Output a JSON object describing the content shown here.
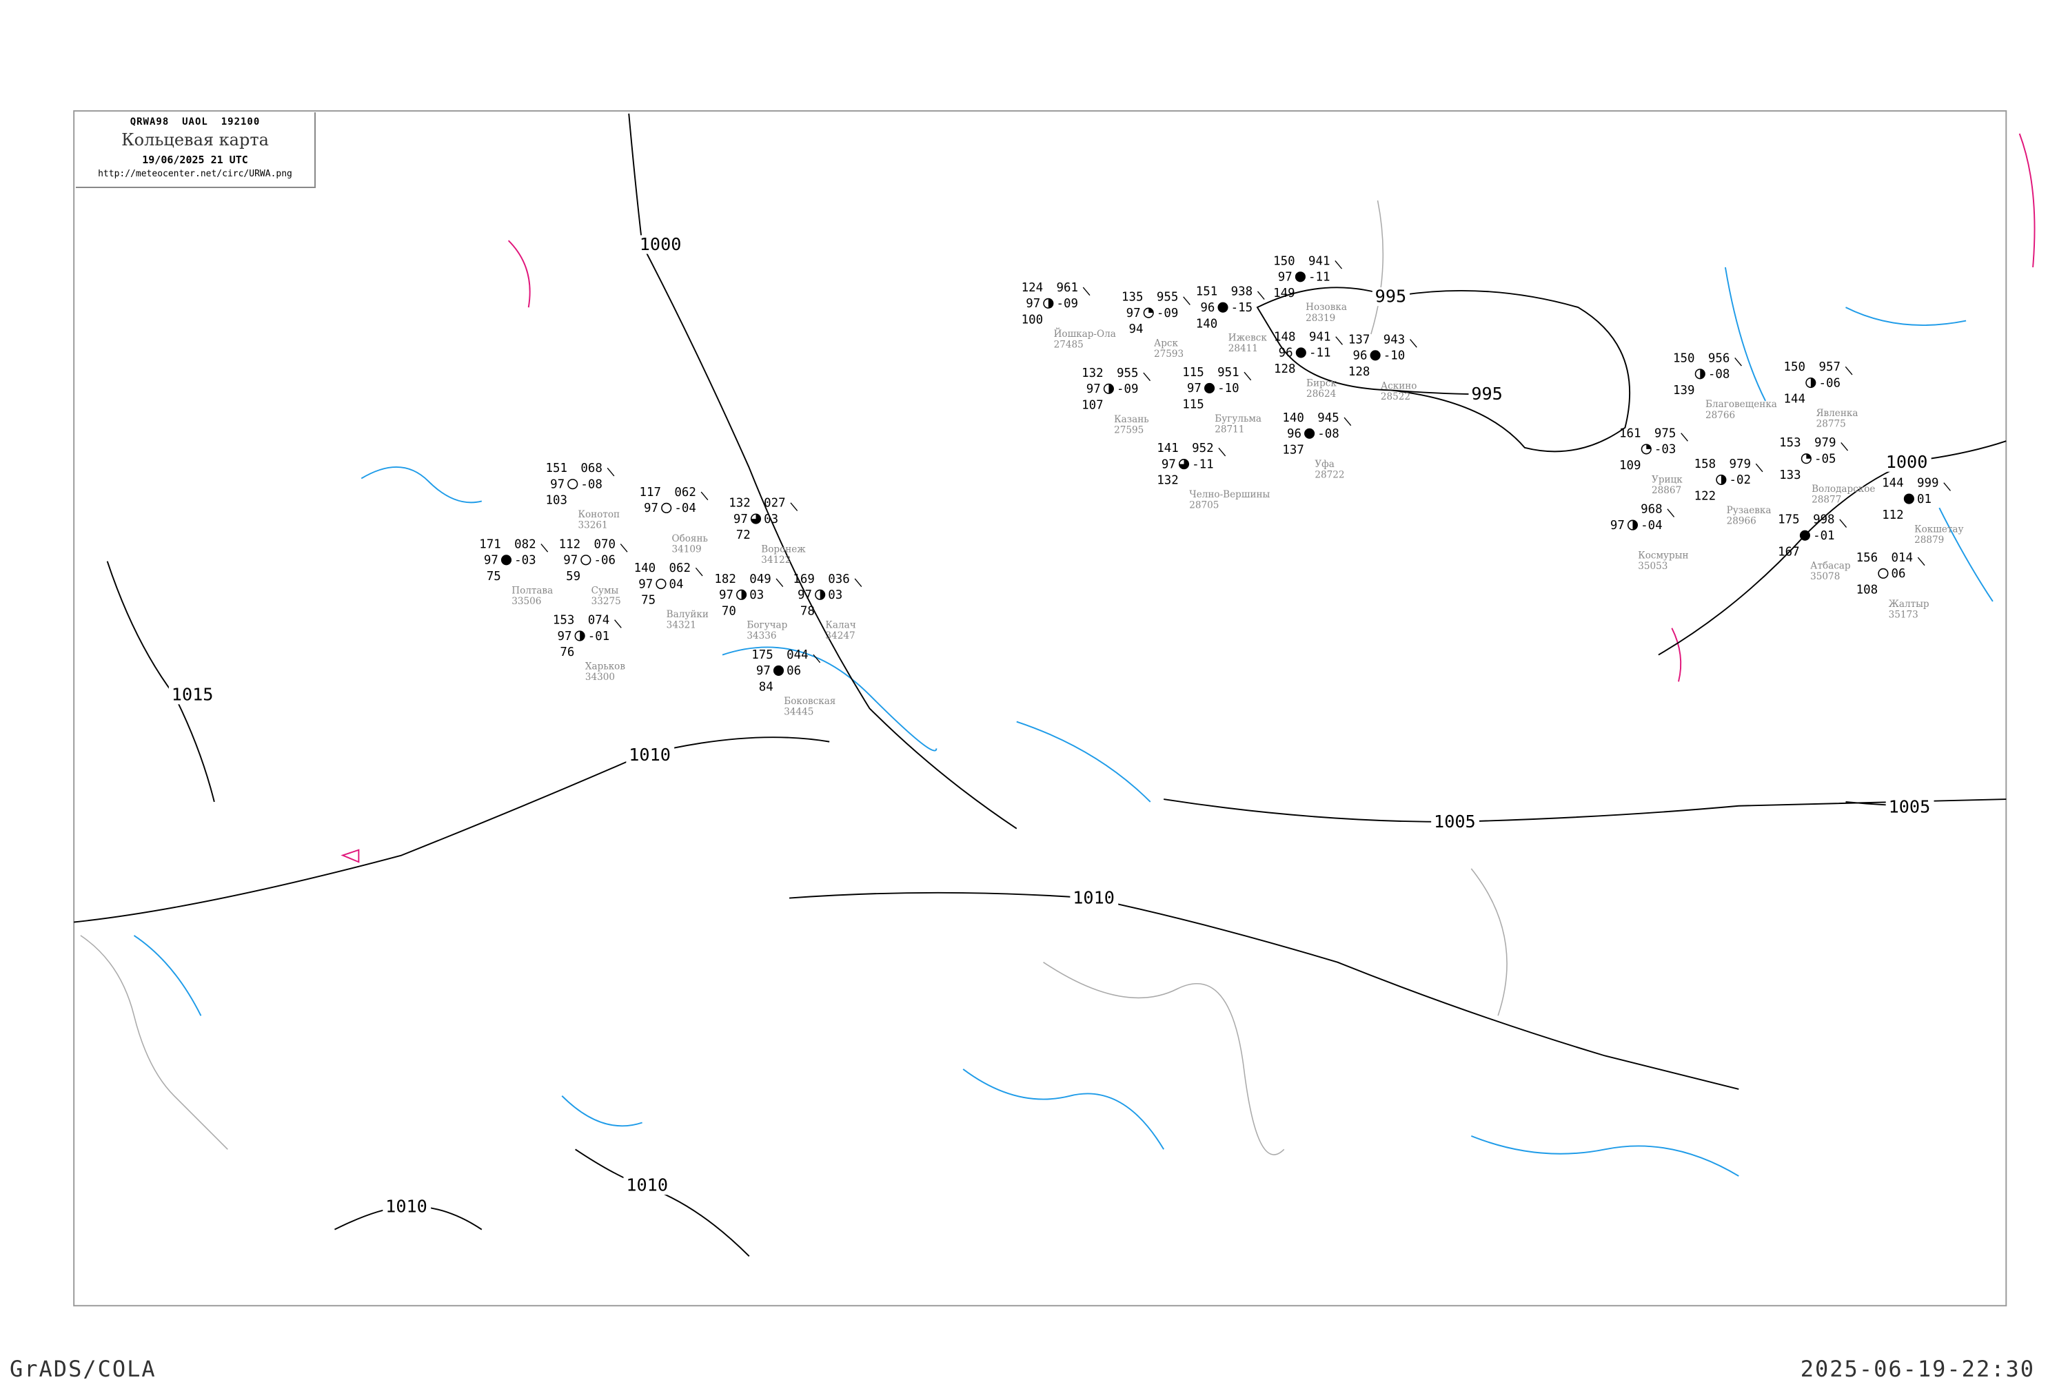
{
  "header": {
    "code": "QRWA98  UAOL  192100",
    "title": "Кольцевая карта",
    "date": "19/06/2025 21 UTC",
    "url": "http://meteocenter.net/circ/URWA.png"
  },
  "footer": {
    "left": "GrADS/COLA",
    "right": "2025-06-19-22:30"
  },
  "colors": {
    "isobar": "#000000",
    "river": "#1e9be8",
    "coast": "#aaaaaa",
    "front": "#e0157a",
    "station_name": "#888888"
  },
  "isobars": [
    {
      "label": "1000"
    },
    {
      "label": "995"
    },
    {
      "label": "995"
    },
    {
      "label": "1000"
    },
    {
      "label": "1005"
    },
    {
      "label": "1005"
    },
    {
      "label": "1010"
    },
    {
      "label": "1010"
    },
    {
      "label": "1015"
    },
    {
      "label": "1010"
    },
    {
      "label": "1010"
    }
  ],
  "stations": [
    {
      "name": "Ижевск",
      "id": "28411",
      "tl": "151",
      "ml": "96",
      "bl": "140",
      "tr": "938",
      "mr": "-15",
      "cover": "full"
    },
    {
      "name": "Нозовка",
      "id": "28319",
      "tl": "150",
      "ml": "97",
      "bl": "149",
      "tr": "941",
      "mr": "-11",
      "cover": "full"
    },
    {
      "name": "Казань",
      "id": "27595",
      "tl": "132",
      "ml": "97",
      "bl": "107",
      "tr": "955",
      "mr": "-09",
      "cover": "half"
    },
    {
      "name": "Арск",
      "id": "27593",
      "tl": "135",
      "ml": "97",
      "bl": "94",
      "tr": "955",
      "mr": "-09",
      "cover": "quarter"
    },
    {
      "name": "Йошкар-Ола",
      "id": "27485",
      "tl": "124",
      "ml": "97",
      "bl": "100",
      "tr": "961",
      "mr": "-09",
      "cover": "half"
    },
    {
      "name": "Уфа",
      "id": "28722",
      "tl": "140",
      "ml": "96",
      "bl": "137",
      "tr": "945",
      "mr": "-08",
      "cover": "full"
    },
    {
      "name": "Бирск",
      "id": "28624",
      "tl": "148",
      "ml": "96",
      "bl": "128",
      "tr": "941",
      "mr": "-11",
      "cover": "full"
    },
    {
      "name": "Аскино",
      "id": "28522",
      "tl": "137",
      "ml": "96",
      "bl": "128",
      "tr": "943",
      "mr": "-10",
      "cover": "full"
    },
    {
      "name": "Бугульма",
      "id": "28711",
      "tl": "115",
      "ml": "97",
      "bl": "115",
      "tr": "951",
      "mr": "-10",
      "cover": "full"
    },
    {
      "name": "Челно-Вершины",
      "id": "28705",
      "tl": "141",
      "ml": "97",
      "bl": "132",
      "tr": "952",
      "mr": "-11",
      "cover": "threequarter"
    },
    {
      "name": "Харьков",
      "id": "34300",
      "tl": "153",
      "ml": "97",
      "bl": "76",
      "tr": "074",
      "mr": "-01",
      "cover": "half"
    },
    {
      "name": "Сумы",
      "id": "33275",
      "tl": "112",
      "ml": "97",
      "bl": "59",
      "tr": "070",
      "mr": "-06",
      "cover": "empty"
    },
    {
      "name": "Обоянь",
      "id": "34109",
      "tl": "117",
      "ml": "97",
      "bl": "",
      "tr": "062",
      "mr": "-04",
      "cover": "empty"
    },
    {
      "name": "Конотоп",
      "id": "33261",
      "tl": "151",
      "ml": "97",
      "bl": "103",
      "tr": "068",
      "mr": "-08",
      "cover": "empty"
    },
    {
      "name": "Полтава",
      "id": "33506",
      "tl": "171",
      "ml": "97",
      "bl": "75",
      "tr": "082",
      "mr": "-03",
      "cover": "full"
    },
    {
      "name": "Воронеж",
      "id": "34122",
      "tl": "132",
      "ml": "97",
      "bl": "72",
      "tr": "027",
      "mr": "03",
      "cover": "threequarter"
    },
    {
      "name": "Богучар",
      "id": "34336",
      "tl": "182",
      "ml": "97",
      "bl": "70",
      "tr": "049",
      "mr": "03",
      "cover": "half"
    },
    {
      "name": "Калач",
      "id": "34247",
      "tl": "169",
      "ml": "97",
      "bl": "78",
      "tr": "036",
      "mr": "03",
      "cover": "half"
    },
    {
      "name": "Валуйки",
      "id": "34321",
      "tl": "140",
      "ml": "97",
      "bl": "75",
      "tr": "062",
      "mr": "04",
      "cover": "empty"
    },
    {
      "name": "Боковская",
      "id": "34445",
      "tl": "175",
      "ml": "97",
      "bl": "84",
      "tr": "044",
      "mr": "06",
      "cover": "full"
    },
    {
      "name": "Благовещенка",
      "id": "28766",
      "tl": "150",
      "ml": "",
      "bl": "139",
      "tr": "956",
      "mr": "-08",
      "cover": "half"
    },
    {
      "name": "Явленка",
      "id": "28775",
      "tl": "150",
      "ml": "",
      "bl": "144",
      "tr": "957",
      "mr": "-06",
      "cover": "half"
    },
    {
      "name": "Володарское",
      "id": "28877",
      "tl": "153",
      "ml": "",
      "bl": "133",
      "tr": "979",
      "mr": "-05",
      "cover": "quarter"
    },
    {
      "name": "Кокшетау",
      "id": "28879",
      "tl": "144",
      "ml": "",
      "bl": "112",
      "tr": "999",
      "mr": "01",
      "cover": "full"
    },
    {
      "name": "Рузаевка",
      "id": "28966",
      "tl": "158",
      "ml": "",
      "bl": "122",
      "tr": "979",
      "mr": "-02",
      "cover": "half"
    },
    {
      "name": "Атбасар",
      "id": "35078",
      "tl": "175",
      "ml": "",
      "bl": "167",
      "tr": "998",
      "mr": "-01",
      "cover": "full"
    },
    {
      "name": "Жалтыр",
      "id": "35173",
      "tl": "156",
      "ml": "",
      "bl": "108",
      "tr": "014",
      "mr": "06",
      "cover": "empty"
    },
    {
      "name": "Урицк",
      "id": "28867",
      "tl": "161",
      "ml": "",
      "bl": "109",
      "tr": "975",
      "mr": "-03",
      "cover": "quarter"
    },
    {
      "name": "Космурын",
      "id": "35053",
      "tl": "",
      "ml": "97",
      "bl": "",
      "tr": "968",
      "mr": "-04",
      "cover": "half"
    }
  ]
}
